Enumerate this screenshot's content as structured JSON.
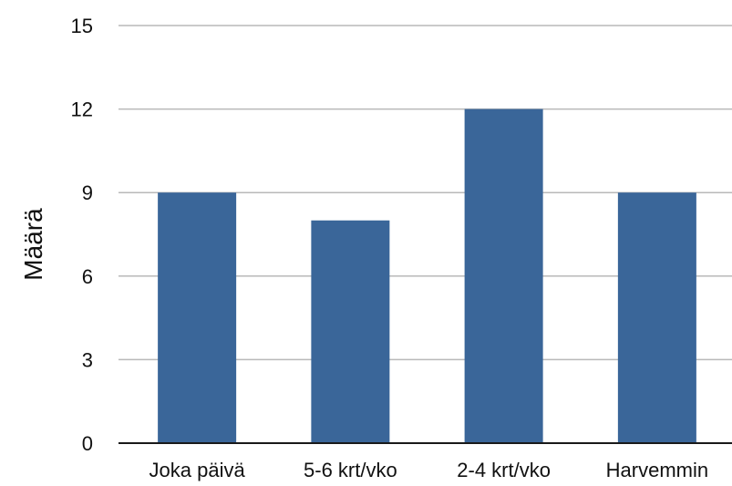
{
  "chart_data": {
    "type": "bar",
    "categories": [
      "Joka päivä",
      "5-6 krt/vko",
      "2-4 krt/vko",
      "Harvemmin"
    ],
    "values": [
      9,
      8,
      12,
      9
    ],
    "ylabel": "Määrä",
    "xlabel": "",
    "title": "",
    "ylim": [
      0,
      15
    ],
    "yticks": [
      0,
      3,
      6,
      9,
      12,
      15
    ],
    "grid": true,
    "legend": "none",
    "colors": {
      "bar": "#3a6699",
      "grid": "#b9b9b9",
      "axis": "#1a1a1a"
    }
  }
}
